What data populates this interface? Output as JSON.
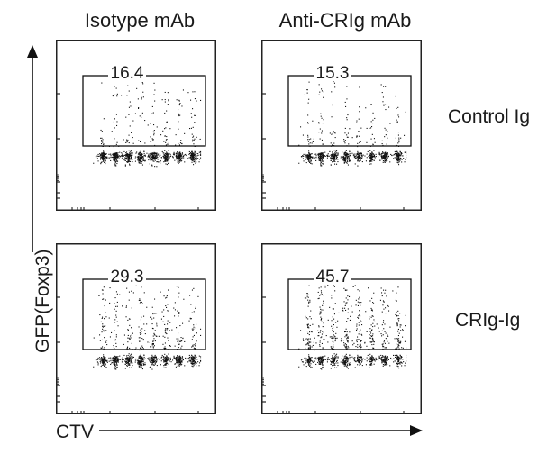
{
  "column_headers": [
    "Isotype mAb",
    "Anti-CRIg mAb"
  ],
  "row_labels": [
    "Control Ig",
    "CRIg-Ig"
  ],
  "axes": {
    "y_title": "GFP(Foxp3)",
    "x_title": "CTV"
  },
  "colors": {
    "dots": "#111111",
    "frame": "#222222",
    "text": "#1a1a1a"
  },
  "chart_data": {
    "type": "scatter",
    "description_layout": "2x2 grid of flow cytometry dot plots with rectangular gate; gate label is percent of events in gate",
    "panels": [
      {
        "row": "Control Ig",
        "column": "Isotype mAb",
        "gate_percent": "16.4",
        "gate_value": 16.4
      },
      {
        "row": "Control Ig",
        "column": "Anti-CRIg mAb",
        "gate_percent": "15.3",
        "gate_value": 15.3
      },
      {
        "row": "CRIg-Ig",
        "column": "Isotype mAb",
        "gate_percent": "29.3",
        "gate_value": 29.3
      },
      {
        "row": "CRIg-Ig",
        "column": "Anti-CRIg mAb",
        "gate_percent": "45.7",
        "gate_value": 45.7
      }
    ],
    "xlabel": "CTV",
    "ylabel": "GFP(Foxp3)",
    "scale": "log",
    "grid": false
  }
}
